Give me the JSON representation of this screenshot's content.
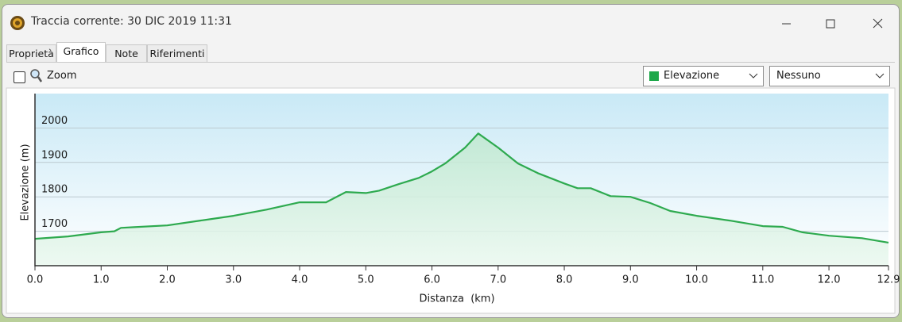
{
  "window": {
    "title": "Traccia corrente: 30 DIC 2019 11:31"
  },
  "tabs": [
    "Proprietà",
    "Grafico",
    "Note",
    "Riferimenti"
  ],
  "toolbar": {
    "zoom_label": "Zoom",
    "series_select": "Elevazione",
    "second_select": "Nessuno"
  },
  "chart_data": {
    "type": "area",
    "y_label": "Elevazione (m)",
    "x_label": "Distanza  (km)",
    "color": "#2eaa4f",
    "grid": true,
    "xlim": [
      0,
      12.9
    ],
    "ylim": [
      1600,
      2100
    ],
    "xticks": [
      {
        "value": 0,
        "label": "0.0"
      },
      {
        "value": 1,
        "label": "1.0"
      },
      {
        "value": 2,
        "label": "2.0"
      },
      {
        "value": 3,
        "label": "3.0"
      },
      {
        "value": 4,
        "label": "4.0"
      },
      {
        "value": 5,
        "label": "5.0"
      },
      {
        "value": 6,
        "label": "6.0"
      },
      {
        "value": 7,
        "label": "7.0"
      },
      {
        "value": 8,
        "label": "8.0"
      },
      {
        "value": 9,
        "label": "9.0"
      },
      {
        "value": 10,
        "label": "10.0"
      },
      {
        "value": 11,
        "label": "11.0"
      },
      {
        "value": 12,
        "label": "12.0"
      },
      12.9
    ],
    "yticks": [
      1700,
      1800,
      1900,
      2000
    ],
    "x": [
      0,
      0.5,
      1.0,
      1.2,
      1.3,
      1.5,
      2.0,
      2.5,
      3.0,
      3.5,
      4.0,
      4.4,
      4.7,
      5.0,
      5.2,
      5.5,
      5.8,
      6.0,
      6.2,
      6.5,
      6.7,
      7.0,
      7.3,
      7.6,
      8.0,
      8.2,
      8.4,
      8.7,
      9.0,
      9.3,
      9.6,
      10.0,
      10.5,
      11.0,
      11.3,
      11.6,
      12.0,
      12.5,
      12.9
    ],
    "values": [
      1678,
      1685,
      1697,
      1700,
      1710,
      1712,
      1717,
      1731,
      1745,
      1763,
      1784,
      1784,
      1814,
      1811,
      1818,
      1837,
      1855,
      1874,
      1897,
      1943,
      1984,
      1943,
      1897,
      1869,
      1839,
      1825,
      1825,
      1802,
      1800,
      1782,
      1759,
      1745,
      1731,
      1715,
      1713,
      1697,
      1687,
      1680,
      1667
    ]
  }
}
